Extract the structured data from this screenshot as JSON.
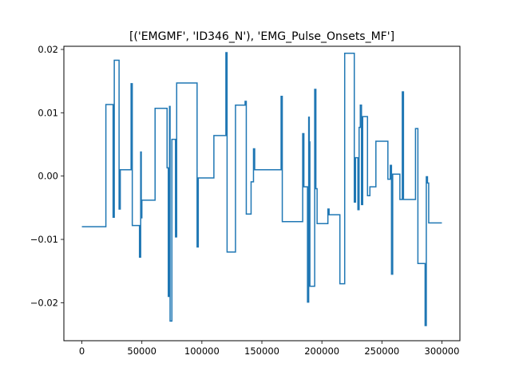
{
  "chart_data": {
    "type": "line",
    "title": "[('EMGMF', 'ID346_N'), 'EMG_Pulse_Onsets_MF']",
    "xlabel": "",
    "ylabel": "",
    "xlim": [
      -15000,
      315000
    ],
    "ylim": [
      -0.026,
      0.0205
    ],
    "grid": false,
    "legend": "none",
    "x_ticks": [
      0,
      50000,
      100000,
      150000,
      200000,
      250000,
      300000
    ],
    "x_tick_labels": [
      "0",
      "50000",
      "100000",
      "150000",
      "200000",
      "250000",
      "300000"
    ],
    "y_ticks": [
      -0.02,
      -0.01,
      0.0,
      0.01,
      0.02
    ],
    "y_tick_labels": [
      "−0.02",
      "−0.01",
      "0.00",
      "0.01",
      "0.02"
    ],
    "series": [
      {
        "name": "EMG_Pulse_Onsets_MF",
        "color": "#1f77b4",
        "x": [
          0,
          20000,
          20000,
          26000,
          26000,
          27000,
          27000,
          31000,
          31000,
          32000,
          32000,
          41000,
          41000,
          42000,
          42000,
          48000,
          48000,
          49000,
          49000,
          49500,
          49500,
          50000,
          50000,
          61000,
          61000,
          71000,
          71000,
          72000,
          72000,
          73000,
          73000,
          73500,
          73500,
          75000,
          75000,
          78000,
          78000,
          79000,
          79000,
          96000,
          96000,
          97000,
          97000,
          110000,
          110000,
          120000,
          120000,
          121000,
          121000,
          128000,
          128000,
          136000,
          136000,
          137000,
          137000,
          141000,
          141000,
          143000,
          143000,
          144000,
          144000,
          166000,
          166000,
          167000,
          167000,
          184000,
          184000,
          185000,
          185000,
          188000,
          188000,
          189000,
          189000,
          189500,
          189500,
          190000,
          190000,
          194000,
          194000,
          195000,
          195000,
          196000,
          196000,
          205000,
          205000,
          206000,
          206000,
          215000,
          215000,
          219000,
          219000,
          227000,
          227000,
          228000,
          228000,
          230000,
          230000,
          231000,
          231000,
          232000,
          232000,
          233000,
          233000,
          234000,
          234000,
          238000,
          238000,
          240000,
          240000,
          245000,
          245000,
          255000,
          255000,
          257000,
          257000,
          258000,
          258000,
          259000,
          259000,
          265000,
          265000,
          267000,
          267000,
          268000,
          268000,
          278000,
          278000,
          280000,
          280000,
          286000,
          286000,
          287000,
          287000,
          288000,
          288000,
          289000,
          289000,
          300000
        ],
        "y": [
          -0.008,
          -0.008,
          0.0113,
          0.0113,
          -0.0065,
          -0.0065,
          0.0183,
          0.0183,
          -0.0052,
          -0.0052,
          0.001,
          0.001,
          0.0146,
          0.0146,
          -0.0078,
          -0.0078,
          -0.0128,
          -0.0128,
          0.0038,
          0.0038,
          -0.0066,
          -0.0066,
          -0.0038,
          -0.0038,
          0.0107,
          0.0107,
          0.0013,
          0.0013,
          -0.019,
          -0.019,
          0.011,
          0.011,
          -0.0229,
          -0.0229,
          0.0058,
          0.0058,
          -0.0096,
          -0.0096,
          0.0147,
          0.0147,
          -0.0112,
          -0.0112,
          -0.0003,
          -0.0003,
          0.0064,
          0.0064,
          0.0195,
          0.0195,
          -0.012,
          -0.012,
          0.0112,
          0.0112,
          0.0118,
          0.0118,
          -0.006,
          -0.006,
          -0.0009,
          -0.0009,
          0.0043,
          0.0043,
          0.001,
          0.001,
          0.0126,
          0.0126,
          -0.0072,
          -0.0072,
          0.0067,
          0.0067,
          -0.0017,
          -0.0017,
          -0.0199,
          -0.0199,
          0.0093,
          0.0093,
          0.0054,
          0.0054,
          -0.0174,
          -0.0174,
          0.0137,
          0.0137,
          -0.002,
          -0.002,
          -0.0075,
          -0.0075,
          -0.0052,
          -0.0052,
          -0.0061,
          -0.0061,
          -0.017,
          -0.017,
          0.0194,
          0.0194,
          -0.0041,
          -0.0041,
          0.0029,
          0.0029,
          -0.0053,
          -0.0053,
          0.0077,
          0.0077,
          0.0112,
          0.0112,
          -0.0045,
          -0.0045,
          0.0094,
          0.0094,
          -0.0031,
          -0.0031,
          -0.0017,
          -0.0017,
          0.0055,
          0.0055,
          -0.0005,
          -0.0005,
          0.0017,
          0.0017,
          -0.0155,
          -0.0155,
          0.0003,
          0.0003,
          -0.0037,
          -0.0037,
          0.0133,
          0.0133,
          -0.0037,
          -0.0037,
          0.0075,
          0.0075,
          -0.0138,
          -0.0138,
          -0.0236,
          -0.0236,
          -0.0001,
          -0.0001,
          -0.0011,
          -0.0011,
          -0.0074,
          -0.0074
        ]
      }
    ]
  }
}
